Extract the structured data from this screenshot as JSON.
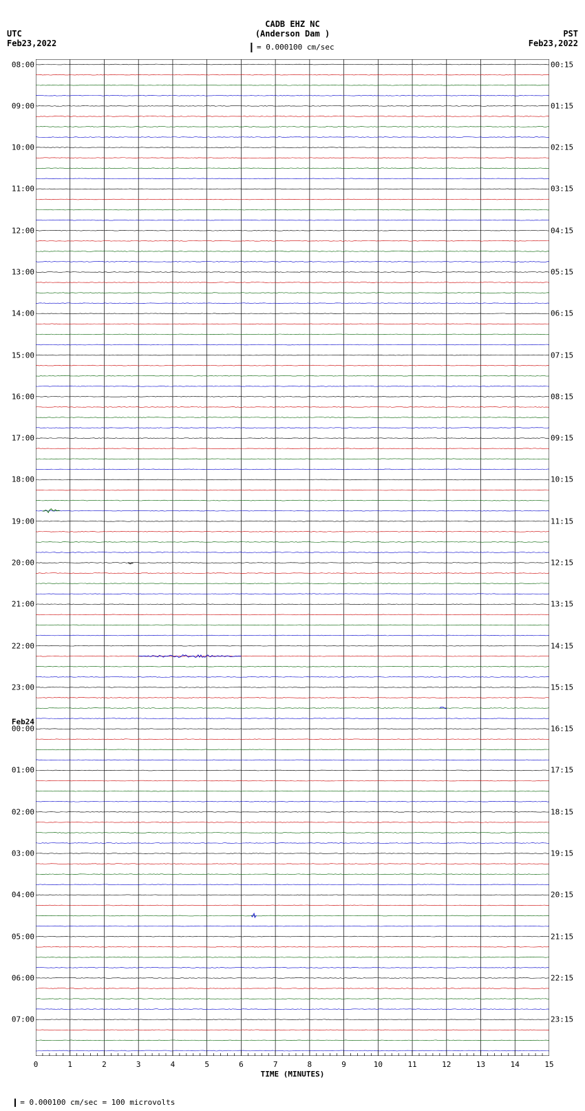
{
  "station": {
    "code": "CADB EHZ NC",
    "name": "(Anderson Dam )"
  },
  "timezone_left": {
    "label": "UTC",
    "date": "Feb23,2022"
  },
  "timezone_right": {
    "label": "PST",
    "date": "Feb23,2022"
  },
  "scale": {
    "text": "= 0.000100 cm/sec"
  },
  "footer": {
    "text": "= 0.000100 cm/sec =    100 microvolts"
  },
  "x_axis": {
    "title": "TIME (MINUTES)",
    "min": 0,
    "max": 15,
    "ticks": [
      0,
      1,
      2,
      3,
      4,
      5,
      6,
      7,
      8,
      9,
      10,
      11,
      12,
      13,
      14,
      15
    ],
    "minor_per_major": 5
  },
  "plot": {
    "num_traces": 96,
    "day_change_at_trace": 64,
    "day_change_label": "Feb24",
    "hour_interval_traces": 4,
    "left_start_hour": 8,
    "right_start_hour_min": "00:15",
    "colors": [
      "#000000",
      "#cc0000",
      "#006000",
      "#0000cc"
    ],
    "background": "#ffffff",
    "grid_color": "#000000",
    "noise_amplitude": 0.9,
    "events": [
      {
        "trace": 43,
        "x_min": 0.2,
        "amp": 3.0,
        "width": 0.5,
        "color": "#006000"
      },
      {
        "trace": 48,
        "x_min": 2.7,
        "amp": 3.5,
        "width": 0.15,
        "color": "#000000"
      },
      {
        "trace": 57,
        "x_min": 3.0,
        "amp": 2.2,
        "width": 3.0,
        "color": "#0000cc"
      },
      {
        "trace": 62,
        "x_min": 11.8,
        "amp": 3.0,
        "width": 0.2,
        "color": "#0000cc"
      },
      {
        "trace": 82,
        "x_min": 6.3,
        "amp": 3.5,
        "width": 0.15,
        "color": "#0000cc"
      }
    ]
  }
}
